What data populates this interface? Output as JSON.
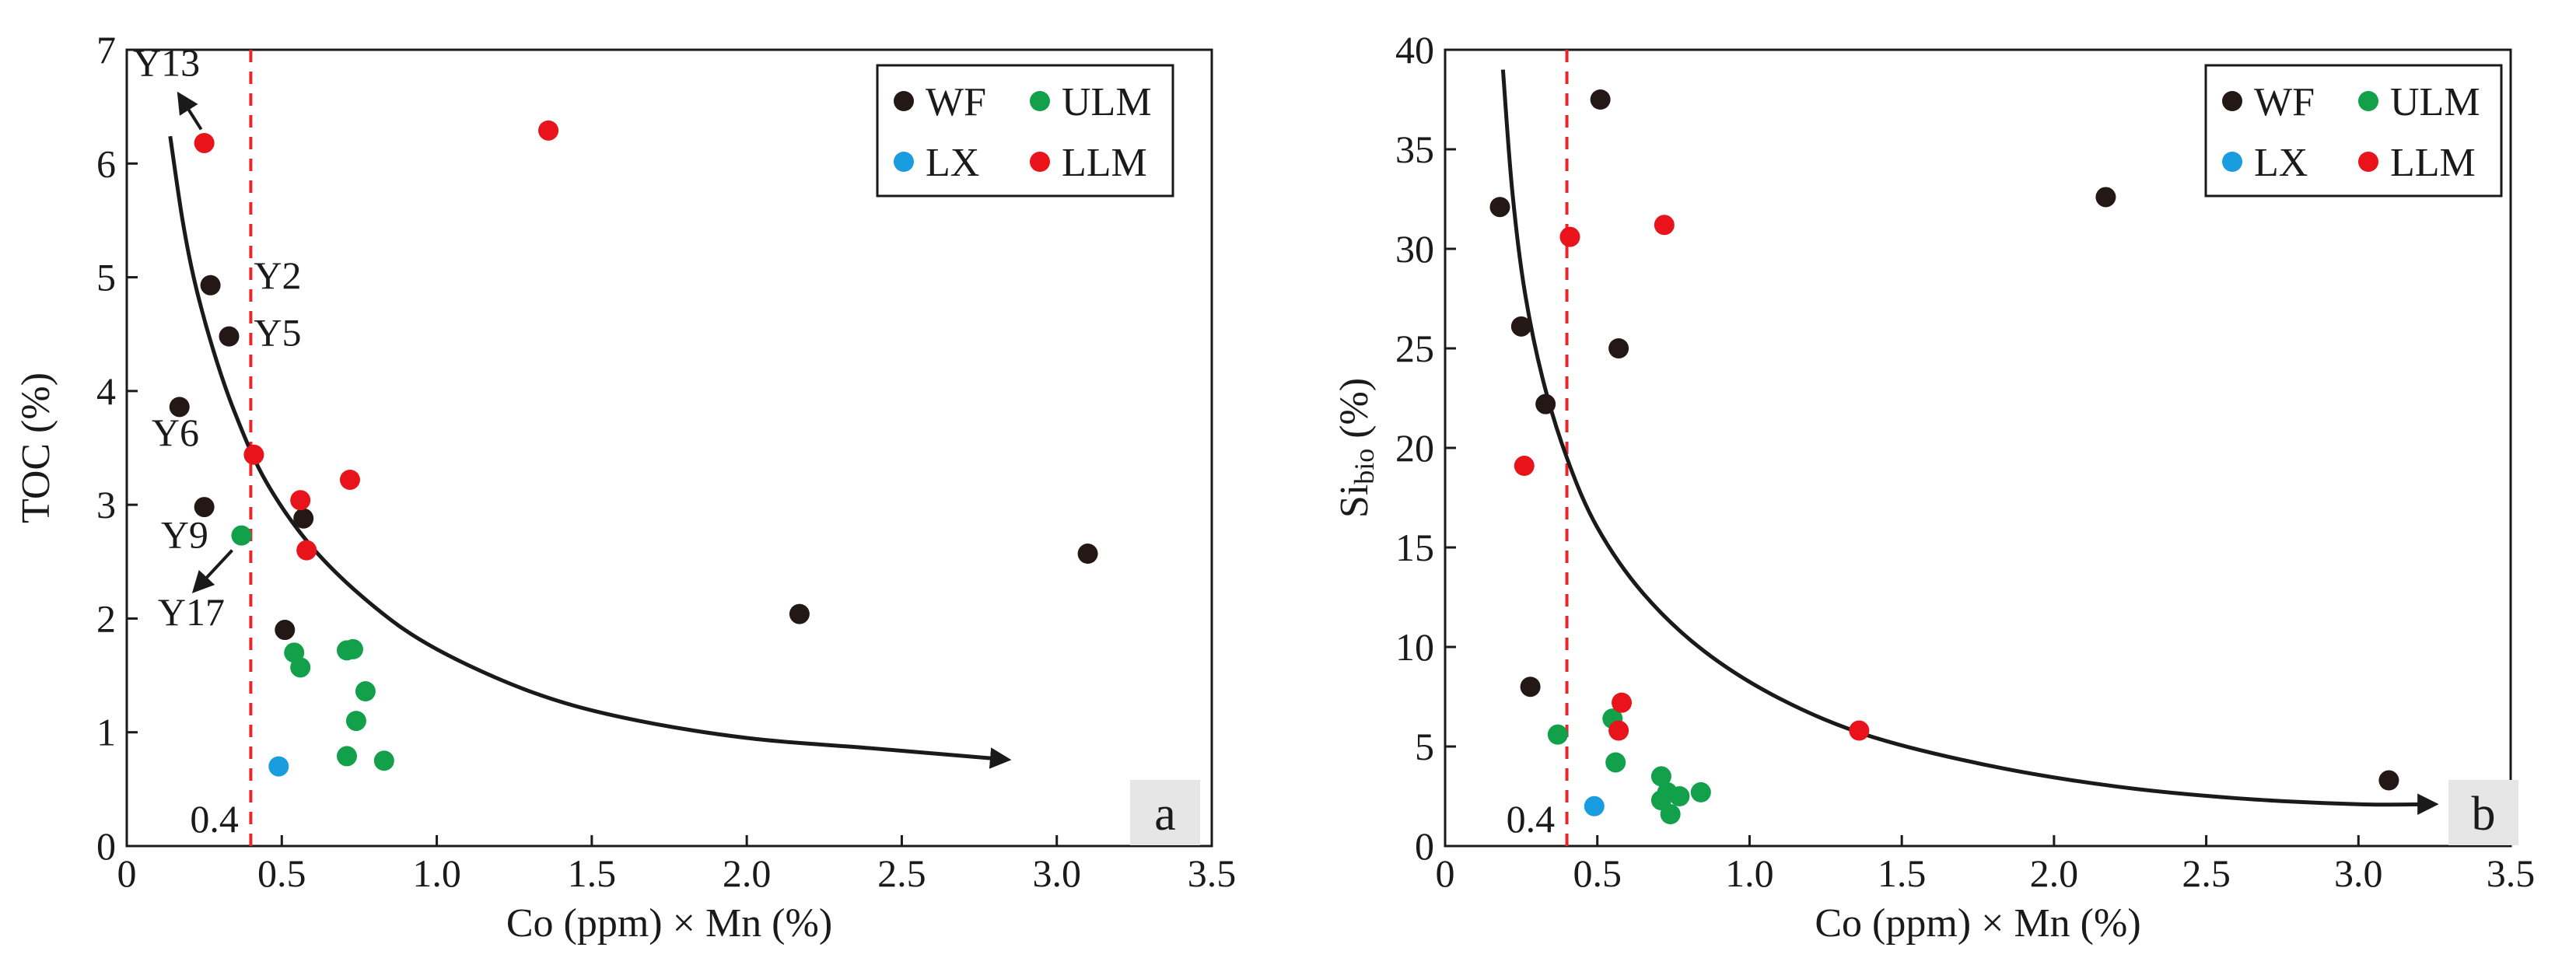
{
  "chart_data": [
    {
      "type": "scatter",
      "panel_label": "a",
      "xlabel": "Co (ppm) × Mn (%)",
      "ylabel": "TOC (%)",
      "xlim": [
        0,
        3.5
      ],
      "ylim": [
        0,
        7
      ],
      "x_ticks": [
        "0",
        "0.5",
        "1.0",
        "1.5",
        "2.0",
        "2.5",
        "3.0",
        "3.5"
      ],
      "y_ticks": [
        "0",
        "1",
        "2",
        "3",
        "4",
        "5",
        "6",
        "7"
      ],
      "threshold": {
        "x": 0.4,
        "label": "0.4"
      },
      "legend": [
        {
          "name": "WF",
          "color": "#231815"
        },
        {
          "name": "ULM",
          "color": "#13a04a"
        },
        {
          "name": "LX",
          "color": "#1a9ce0"
        },
        {
          "name": "LLM",
          "color": "#e8131b"
        }
      ],
      "series": [
        {
          "name": "WF",
          "color": "#231815",
          "points": [
            [
              0.27,
              4.93
            ],
            [
              0.33,
              4.48
            ],
            [
              0.17,
              3.86
            ],
            [
              0.25,
              2.98
            ],
            [
              0.57,
              2.88
            ],
            [
              0.51,
              1.9
            ],
            [
              2.17,
              2.04
            ],
            [
              3.1,
              2.57
            ]
          ]
        },
        {
          "name": "ULM",
          "color": "#13a04a",
          "points": [
            [
              0.37,
              2.73
            ],
            [
              0.54,
              1.7
            ],
            [
              0.56,
              1.57
            ],
            [
              0.71,
              1.72
            ],
            [
              0.73,
              1.73
            ],
            [
              0.77,
              1.36
            ],
            [
              0.74,
              1.1
            ],
            [
              0.71,
              0.79
            ],
            [
              0.83,
              0.75
            ]
          ]
        },
        {
          "name": "LX",
          "color": "#1a9ce0",
          "points": [
            [
              0.49,
              0.7
            ]
          ]
        },
        {
          "name": "LLM",
          "color": "#e8131b",
          "points": [
            [
              0.25,
              6.18
            ],
            [
              1.36,
              6.29
            ],
            [
              0.41,
              3.44
            ],
            [
              0.72,
              3.22
            ],
            [
              0.56,
              3.04
            ],
            [
              0.58,
              2.6
            ]
          ]
        }
      ],
      "trend_curve": [
        [
          0.14,
          6.24
        ],
        [
          0.18,
          5.5
        ],
        [
          0.22,
          4.95
        ],
        [
          0.28,
          4.35
        ],
        [
          0.35,
          3.8
        ],
        [
          0.45,
          3.2
        ],
        [
          0.6,
          2.62
        ],
        [
          0.8,
          2.1
        ],
        [
          1.0,
          1.73
        ],
        [
          1.3,
          1.36
        ],
        [
          1.6,
          1.13
        ],
        [
          2.0,
          0.95
        ],
        [
          2.4,
          0.86
        ],
        [
          2.84,
          0.76
        ]
      ],
      "annotations": [
        {
          "text": "Y13",
          "x": 0.02,
          "y": 6.77
        },
        {
          "text": "Y2",
          "x": 0.41,
          "y": 4.9
        },
        {
          "text": "Y5",
          "x": 0.41,
          "y": 4.4
        },
        {
          "text": "Y6",
          "x": 0.08,
          "y": 3.52
        },
        {
          "text": "Y9",
          "x": 0.11,
          "y": 2.62
        },
        {
          "text": "Y17",
          "x": 0.1,
          "y": 1.94
        }
      ],
      "arrows": [
        {
          "from": [
            0.24,
            6.3
          ],
          "to": [
            0.17,
            6.6
          ]
        },
        {
          "from": [
            0.34,
            2.6
          ],
          "to": [
            0.22,
            2.25
          ]
        }
      ]
    },
    {
      "type": "scatter",
      "panel_label": "b",
      "xlabel": "Co (ppm) × Mn (%)",
      "ylabel": "Si",
      "ylabel_sub": "bio",
      "ylabel_unit": " (%)",
      "xlim": [
        0,
        3.5
      ],
      "ylim": [
        0,
        40
      ],
      "x_ticks": [
        "0",
        "0.5",
        "1.0",
        "1.5",
        "2.0",
        "2.5",
        "3.0",
        "3.5"
      ],
      "y_ticks": [
        "0",
        "5",
        "10",
        "15",
        "20",
        "25",
        "30",
        "35",
        "40"
      ],
      "threshold": {
        "x": 0.4,
        "label": "0.4"
      },
      "legend": [
        {
          "name": "WF",
          "color": "#231815"
        },
        {
          "name": "ULM",
          "color": "#13a04a"
        },
        {
          "name": "LX",
          "color": "#1a9ce0"
        },
        {
          "name": "LLM",
          "color": "#e8131b"
        }
      ],
      "series": [
        {
          "name": "WF",
          "color": "#231815",
          "points": [
            [
              0.51,
              37.5
            ],
            [
              0.18,
              32.1
            ],
            [
              0.25,
              26.1
            ],
            [
              0.57,
              25.0
            ],
            [
              0.33,
              22.2
            ],
            [
              0.28,
              8.0
            ],
            [
              2.17,
              32.6
            ],
            [
              3.1,
              3.3
            ]
          ]
        },
        {
          "name": "ULM",
          "color": "#13a04a",
          "points": [
            [
              0.37,
              5.6
            ],
            [
              0.55,
              6.4
            ],
            [
              0.56,
              4.2
            ],
            [
              0.71,
              3.5
            ],
            [
              0.73,
              2.7
            ],
            [
              0.77,
              2.5
            ],
            [
              0.71,
              2.3
            ],
            [
              0.74,
              1.6
            ],
            [
              0.84,
              2.7
            ]
          ]
        },
        {
          "name": "LX",
          "color": "#1a9ce0",
          "points": [
            [
              0.49,
              2.0
            ]
          ]
        },
        {
          "name": "LLM",
          "color": "#e8131b",
          "points": [
            [
              0.41,
              30.6
            ],
            [
              0.72,
              31.2
            ],
            [
              0.26,
              19.1
            ],
            [
              0.58,
              7.2
            ],
            [
              0.57,
              5.8
            ],
            [
              1.36,
              5.8
            ]
          ]
        }
      ],
      "trend_curve": [
        [
          0.19,
          39.0
        ],
        [
          0.22,
          33.0
        ],
        [
          0.26,
          28.0
        ],
        [
          0.32,
          23.5
        ],
        [
          0.4,
          19.5
        ],
        [
          0.5,
          16.0
        ],
        [
          0.65,
          12.7
        ],
        [
          0.85,
          9.8
        ],
        [
          1.1,
          7.4
        ],
        [
          1.4,
          5.5
        ],
        [
          1.8,
          4.0
        ],
        [
          2.2,
          3.0
        ],
        [
          2.6,
          2.4
        ],
        [
          3.0,
          2.1
        ],
        [
          3.25,
          2.1
        ]
      ],
      "annotations": [],
      "arrows": []
    }
  ]
}
